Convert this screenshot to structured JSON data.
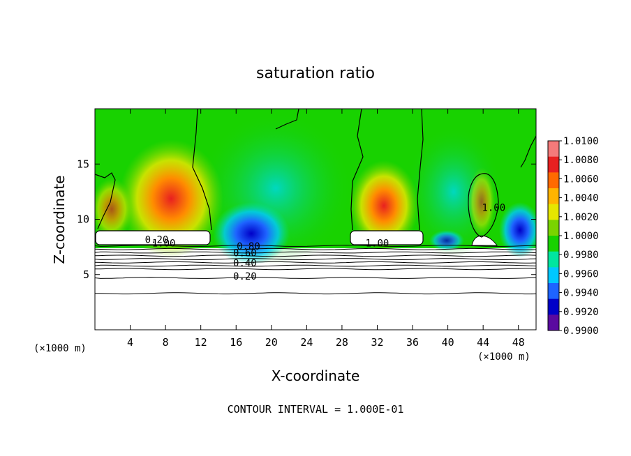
{
  "chart_data": {
    "type": "heatmap",
    "title": "saturation ratio",
    "xlabel": "X-coordinate",
    "ylabel": "Z-coordinate",
    "x_unit_left": "(×1000 m)",
    "x_unit_right": "(×1000 m)",
    "xlim": [
      0,
      50
    ],
    "ylim": [
      0,
      20
    ],
    "x_ticks": [
      4,
      8,
      12,
      16,
      20,
      24,
      28,
      32,
      36,
      40,
      44,
      48
    ],
    "y_ticks": [
      5,
      10,
      15
    ],
    "footer": "CONTOUR INTERVAL = 1.000E-01",
    "colorbar": {
      "ticks": [
        "1.0100",
        "1.0080",
        "1.0060",
        "1.0040",
        "1.0020",
        "1.0000",
        "0.9980",
        "0.9960",
        "0.9940",
        "0.9920",
        "0.9900"
      ],
      "colors": [
        "#f47a7a",
        "#e82020",
        "#ff6a00",
        "#ffb400",
        "#e6e600",
        "#7ad400",
        "#18d200",
        "#00e6a0",
        "#00c8ff",
        "#1e64ff",
        "#0000c8",
        "#5a0aa0"
      ]
    },
    "contour_labels": [
      {
        "text": "1.00",
        "x": 7.8,
        "y": 7.8
      },
      {
        "text": "0.20",
        "x": 7.0,
        "y": 8.1
      },
      {
        "text": "0.80",
        "x": 17.4,
        "y": 7.5
      },
      {
        "text": "0.60",
        "x": 17.0,
        "y": 6.9
      },
      {
        "text": "0.40",
        "x": 17.0,
        "y": 6.0
      },
      {
        "text": "0.20",
        "x": 17.0,
        "y": 4.8
      },
      {
        "text": "1.00",
        "x": 32.0,
        "y": 7.8
      },
      {
        "text": "1.00",
        "x": 45.2,
        "y": 11.0
      }
    ],
    "contour_levels_z": [
      3.3,
      4.7,
      5.5,
      5.8,
      6.1,
      6.4,
      6.7,
      7.0,
      7.3,
      7.6
    ]
  }
}
